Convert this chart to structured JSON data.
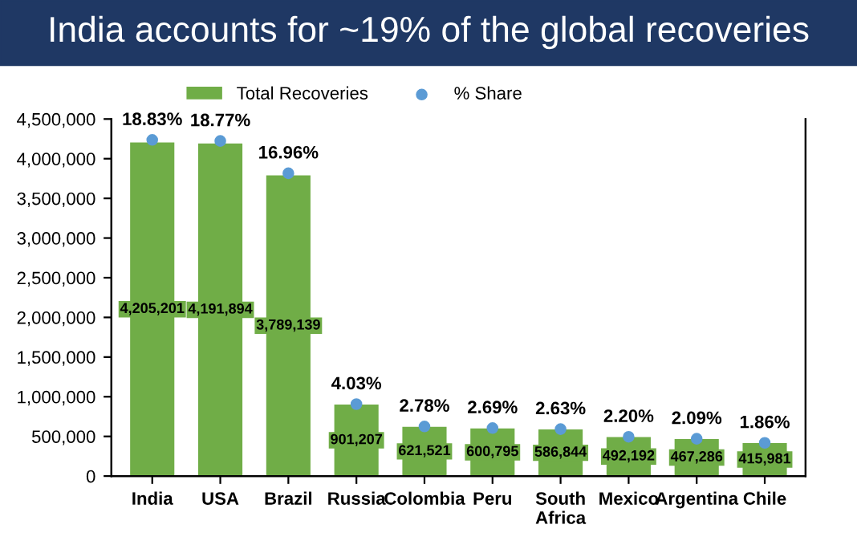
{
  "chart_data": {
    "type": "bar",
    "title": "India accounts for ~19% of the global recoveries",
    "categories": [
      "India",
      "USA",
      "Brazil",
      "Russia",
      "Colombia",
      "Peru",
      "South\nAfrica",
      "Mexico",
      "Argentina",
      "Chile"
    ],
    "series": [
      {
        "name": "Total Recoveries",
        "color": "#70ad47",
        "values": [
          4205201,
          4191894,
          3789139,
          901207,
          621521,
          600795,
          586844,
          492192,
          467286,
          415981
        ],
        "value_labels": [
          "4,205,201",
          "4,191,894",
          "3,789,139",
          "901,207",
          "621,521",
          "600,795",
          "586,844",
          "492,192",
          "467,286",
          "415,981"
        ]
      },
      {
        "name": "% Share",
        "type": "scatter",
        "axis": "y2",
        "color": "#5b9bd5",
        "values": [
          18.83,
          18.77,
          16.96,
          4.03,
          2.78,
          2.69,
          2.63,
          2.2,
          2.09,
          1.86
        ],
        "value_labels": [
          "18.83%",
          "18.77%",
          "16.96%",
          "4.03%",
          "2.78%",
          "2.69%",
          "2.63%",
          "2.20%",
          "2.09%",
          "1.86%"
        ]
      }
    ],
    "ylim": [
      0,
      4500000
    ],
    "yticks": [
      0,
      {
        "value": 500000,
        "label": "500,000"
      },
      {
        "value": 1000000,
        "label": "1,000,000"
      },
      {
        "value": 1500000,
        "label": "1,500,000"
      },
      {
        "value": 2000000,
        "label": "2,000,000"
      },
      {
        "value": 2500000,
        "label": "2,500,000"
      },
      {
        "value": 3000000,
        "label": "3,000,000"
      },
      {
        "value": 3500000,
        "label": "3,500,000"
      },
      {
        "value": 4000000,
        "label": "4,000,000"
      },
      {
        "value": 4500000,
        "label": "4,500,000"
      }
    ],
    "y2lim": [
      0,
      20
    ],
    "legend": "top",
    "grid": false,
    "marker": "circle"
  }
}
